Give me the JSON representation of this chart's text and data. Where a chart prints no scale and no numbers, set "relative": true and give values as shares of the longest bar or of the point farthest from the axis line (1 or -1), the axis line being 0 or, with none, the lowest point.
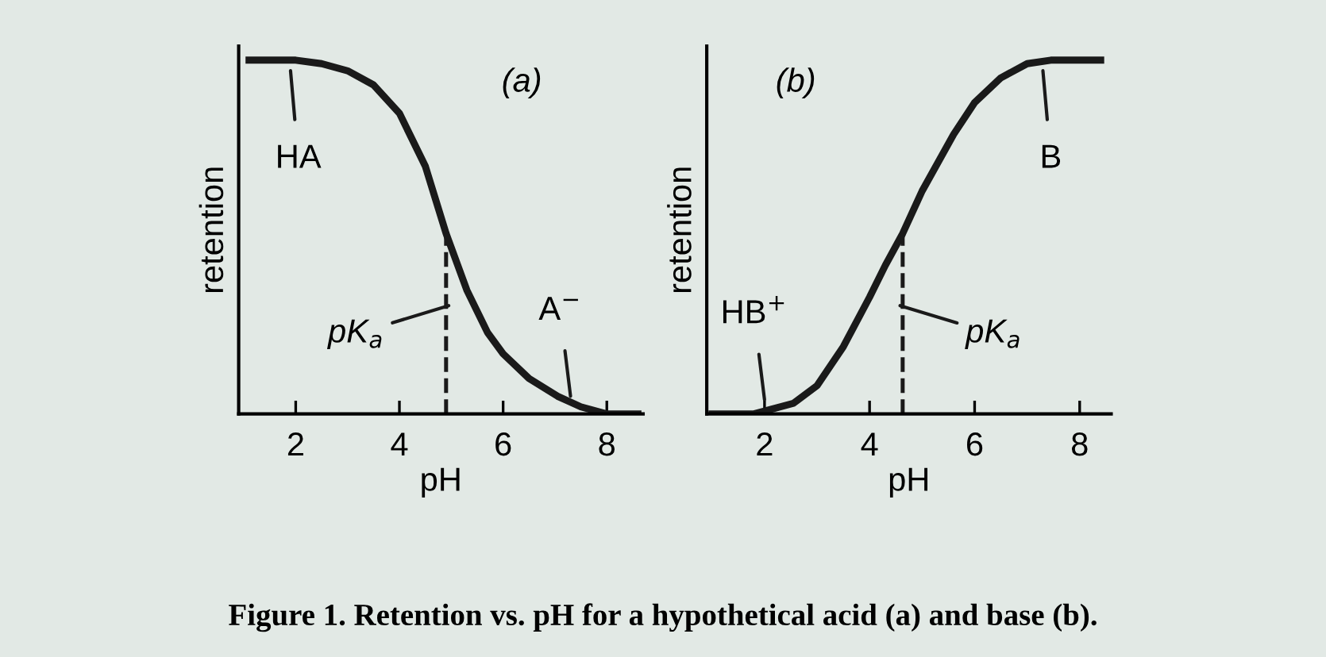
{
  "chart_data": [
    {
      "type": "line",
      "title": "(a)",
      "xlabel": "pH",
      "ylabel": "retention",
      "relative": true,
      "xlim": [
        0.9,
        8.7
      ],
      "xticks": [
        2,
        4,
        6,
        8
      ],
      "grid": false,
      "legend": false,
      "marker": "none",
      "line_style": "solid",
      "tick_labels": "x",
      "series": [
        {
          "color": "#1a1a1a",
          "x": [
            1.1,
            2.0,
            2.5,
            3.0,
            3.5,
            4.0,
            4.5,
            4.9,
            5.3,
            5.7,
            6.0,
            6.5,
            7.05,
            7.5,
            8.0,
            8.6
          ],
          "values": [
            1,
            1,
            0.99,
            0.97,
            0.93,
            0.85,
            0.7,
            0.51,
            0.35,
            0.23,
            0.17,
            0.1,
            0.05,
            0.02,
            0,
            0
          ]
        }
      ],
      "ref_lines": [
        {
          "axis": "x",
          "value": 4.9,
          "label": "pK$_{a}$",
          "line_style": "dashed"
        }
      ],
      "annotations": [
        {
          "text": "HA",
          "x": 1.9,
          "y": 1
        },
        {
          "text": "A$^{−}$",
          "x": 7.3,
          "y": 0.02
        },
        "Figure 1. Retention vs. pH for a hypothetical acid (a) and base (b)."
      ]
    },
    {
      "type": "line",
      "title": "(b)",
      "xlabel": "pH",
      "ylabel": "retention",
      "relative": true,
      "xlim": [
        0.9,
        8.6
      ],
      "xticks": [
        2,
        4,
        6,
        8
      ],
      "grid": false,
      "legend": false,
      "marker": "none",
      "line_style": "solid",
      "tick_labels": "x",
      "series": [
        {
          "color": "#1a1a1a",
          "x": [
            1.0,
            1.8,
            2.55,
            3.0,
            3.5,
            4.0,
            4.3,
            4.63,
            5.0,
            5.6,
            6.0,
            6.5,
            7.0,
            7.45,
            8.4
          ],
          "values": [
            0,
            0,
            0.03,
            0.08,
            0.19,
            0.33,
            0.42,
            0.51,
            0.63,
            0.79,
            0.88,
            0.95,
            0.99,
            1,
            1
          ]
        }
      ],
      "ref_lines": [
        {
          "axis": "x",
          "value": 4.63,
          "label": "pK$_{a}$",
          "line_style": "dashed"
        }
      ],
      "annotations": [
        {
          "text": "HB$^{+}$",
          "x": 2.0,
          "y": 0.01
        },
        {
          "text": "B",
          "x": 7.3,
          "y": 1
        }
      ]
    }
  ]
}
